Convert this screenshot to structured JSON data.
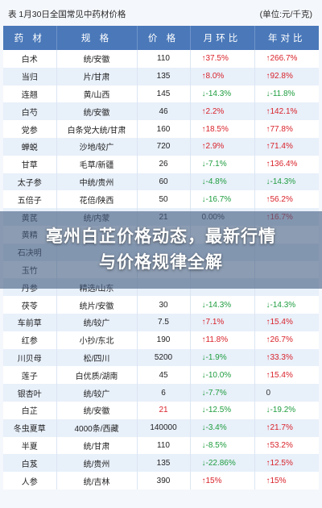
{
  "header": {
    "title": "表  1月30日全国常见中药材价格",
    "unit": "(单位:元/千克)"
  },
  "table": {
    "columns": [
      "药 材",
      "规 格",
      "价 格",
      "月环比",
      "年对比"
    ],
    "rows": [
      {
        "name": "白术",
        "spec": "统/安徽",
        "price": "110",
        "mom": "↑37.5%",
        "mom_dir": "up",
        "yoy": "↑266.7%",
        "yoy_dir": "up"
      },
      {
        "name": "当归",
        "spec": "片/甘肃",
        "price": "135",
        "mom": "↑8.0%",
        "mom_dir": "up",
        "yoy": "↑92.8%",
        "yoy_dir": "up"
      },
      {
        "name": "连翘",
        "spec": "黄/山西",
        "price": "145",
        "mom": "↓-14.3%",
        "mom_dir": "down",
        "yoy": "↓-11.8%",
        "yoy_dir": "down"
      },
      {
        "name": "白芍",
        "spec": "统/安徽",
        "price": "46",
        "mom": "↑2.2%",
        "mom_dir": "up",
        "yoy": "↑142.1%",
        "yoy_dir": "up"
      },
      {
        "name": "党参",
        "spec": "白条党大统/甘肃",
        "price": "160",
        "mom": "↑18.5%",
        "mom_dir": "up",
        "yoy": "↑77.8%",
        "yoy_dir": "up"
      },
      {
        "name": "蝉蜕",
        "spec": "沙地/较广",
        "price": "720",
        "mom": "↑2.9%",
        "mom_dir": "up",
        "yoy": "↑71.4%",
        "yoy_dir": "up"
      },
      {
        "name": "甘草",
        "spec": "毛草/新疆",
        "price": "26",
        "mom": "↓-7.1%",
        "mom_dir": "down",
        "yoy": "↑136.4%",
        "yoy_dir": "up"
      },
      {
        "name": "太子参",
        "spec": "中统/贵州",
        "price": "60",
        "mom": "↓-4.8%",
        "mom_dir": "down",
        "yoy": "↓-14.3%",
        "yoy_dir": "down"
      },
      {
        "name": "五倍子",
        "spec": "花倍/陕西",
        "price": "50",
        "mom": "↓-16.7%",
        "mom_dir": "down",
        "yoy": "↑56.2%",
        "yoy_dir": "up"
      },
      {
        "name": "黄芪",
        "spec": "统/内蒙",
        "price": "21",
        "mom": "0.00%",
        "mom_dir": "flat",
        "yoy": "↑16.7%",
        "yoy_dir": "up"
      },
      {
        "name": "黄精",
        "spec": "",
        "price": "",
        "mom": "",
        "mom_dir": "flat",
        "yoy": "",
        "yoy_dir": "flat"
      },
      {
        "name": "石决明",
        "spec": "",
        "price": "",
        "mom": "",
        "mom_dir": "flat",
        "yoy": "",
        "yoy_dir": "flat"
      },
      {
        "name": "玉竹",
        "spec": "",
        "price": "",
        "mom": "",
        "mom_dir": "flat",
        "yoy": "",
        "yoy_dir": "flat"
      },
      {
        "name": "丹参",
        "spec": "精选/山东",
        "price": "",
        "mom": "",
        "mom_dir": "flat",
        "yoy": "",
        "yoy_dir": "flat"
      },
      {
        "name": "茯苓",
        "spec": "统片/安徽",
        "price": "30",
        "mom": "↓-14.3%",
        "mom_dir": "down",
        "yoy": "↓-14.3%",
        "yoy_dir": "down"
      },
      {
        "name": "车前草",
        "spec": "统/较广",
        "price": "7.5",
        "mom": "↑7.1%",
        "mom_dir": "up",
        "yoy": "↑15.4%",
        "yoy_dir": "up"
      },
      {
        "name": "红参",
        "spec": "小抄/东北",
        "price": "190",
        "mom": "↑11.8%",
        "mom_dir": "up",
        "yoy": "↑26.7%",
        "yoy_dir": "up"
      },
      {
        "name": "川贝母",
        "spec": "松/四川",
        "price": "5200",
        "mom": "↓-1.9%",
        "mom_dir": "down",
        "yoy": "↑33.3%",
        "yoy_dir": "up"
      },
      {
        "name": "莲子",
        "spec": "白优质/湖南",
        "price": "45",
        "mom": "↓-10.0%",
        "mom_dir": "down",
        "yoy": "↑15.4%",
        "yoy_dir": "up"
      },
      {
        "name": "银杏叶",
        "spec": "统/较广",
        "price": "6",
        "mom": "↓-7.7%",
        "mom_dir": "down",
        "yoy": "0",
        "yoy_dir": "flat"
      },
      {
        "name": "白芷",
        "spec": "统/安徽",
        "price": "21",
        "price_red": true,
        "mom": "↓-12.5%",
        "mom_dir": "down",
        "yoy": "↓-19.2%",
        "yoy_dir": "down"
      },
      {
        "name": "冬虫夏草",
        "spec": "4000条/西藏",
        "price": "140000",
        "mom": "↓-3.4%",
        "mom_dir": "down",
        "yoy": "↑21.7%",
        "yoy_dir": "up"
      },
      {
        "name": "半夏",
        "spec": "统/甘肃",
        "price": "110",
        "mom": "↓-8.5%",
        "mom_dir": "down",
        "yoy": "↑53.2%",
        "yoy_dir": "up"
      },
      {
        "name": "白芨",
        "spec": "统/贵州",
        "price": "135",
        "mom": "↓-22.86%",
        "mom_dir": "down",
        "yoy": "↑12.5%",
        "yoy_dir": "up"
      },
      {
        "name": "人参",
        "spec": "统/吉林",
        "price": "390",
        "mom": "↑15%",
        "mom_dir": "up",
        "yoy": "↑15%",
        "yoy_dir": "up"
      }
    ]
  },
  "banner": {
    "text": "亳州白芷价格动态，最新行情与价格规律全解"
  },
  "colors": {
    "header_bg": "#4a78b9",
    "row_alt": "#e8f0fa",
    "up": "#d9222a",
    "down": "#1f9d3f"
  }
}
